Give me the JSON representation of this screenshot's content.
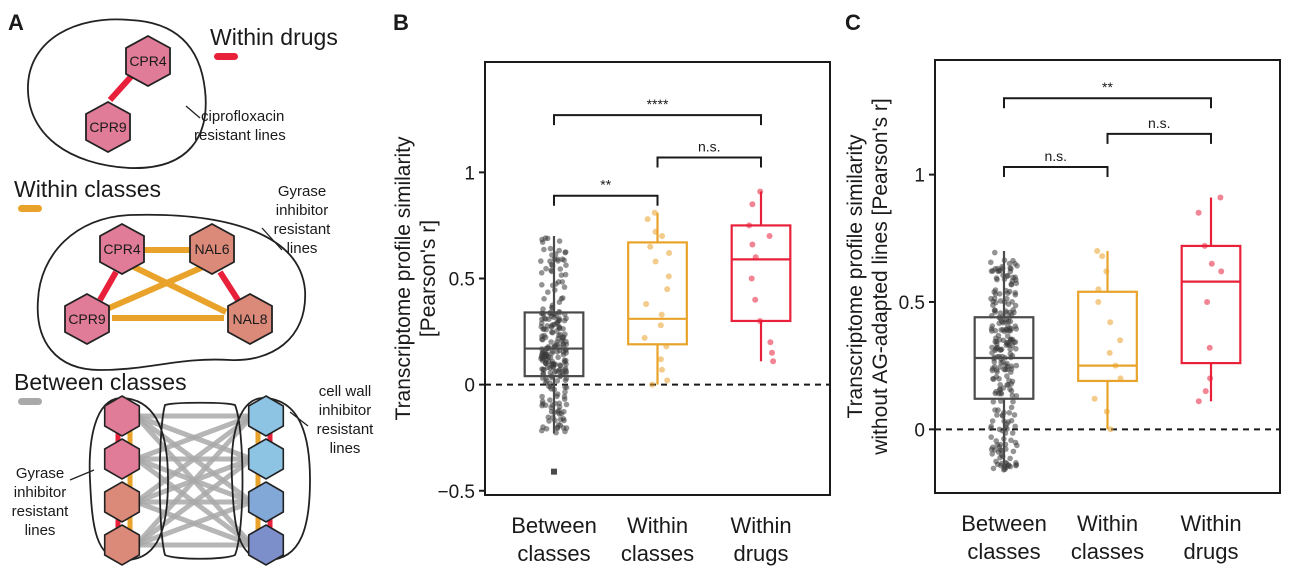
{
  "panels": {
    "a": "A",
    "b": "B",
    "c": "C"
  },
  "schematic": {
    "within_drugs": {
      "title": "Within drugs",
      "color": "#e8203a",
      "nodes": [
        "CPR4",
        "CPR9"
      ],
      "note": [
        "ciprofloxacin",
        "resistant lines"
      ]
    },
    "within_classes": {
      "title": "Within classes",
      "color": "#e9a32b",
      "nodes": [
        "CPR4",
        "NAL6",
        "CPR9",
        "NAL8"
      ],
      "note": [
        "Gyrase",
        "inhibitor",
        "resistant",
        "lines"
      ]
    },
    "between_classes": {
      "title": "Between classes",
      "color": "#a9a9a9",
      "left_note": [
        "Gyrase",
        "inhibitor",
        "resistant",
        "lines"
      ],
      "right_note": [
        "cell wall",
        "inhibitor",
        "resistant",
        "lines"
      ]
    },
    "colors": {
      "cpr": "#e07b98",
      "nal": "#db8a7a",
      "blue_light": "#8dc3e3",
      "blue_mid": "#82a8d8",
      "blue_dark": "#7d8fcb"
    }
  },
  "chart_data": [
    {
      "type": "box",
      "panel": "B",
      "categories": [
        [
          "Between",
          "classes"
        ],
        [
          "Within",
          "classes"
        ],
        [
          "Within",
          "drugs"
        ]
      ],
      "ylabel": [
        "Transcriptome profile similarity",
        "[Pearson's r]"
      ],
      "ylim": [
        -0.52,
        1.52
      ],
      "yticks": [
        -0.5,
        0,
        0.5,
        1
      ],
      "ytick_labels": [
        "−0.5",
        "0",
        "0.5",
        "1"
      ],
      "reference_line": 0,
      "colors": [
        "#4a4a4a",
        "#e9a32b",
        "#e8203a"
      ],
      "boxes": [
        {
          "whisker_low": -0.23,
          "q1": 0.04,
          "median": 0.17,
          "q3": 0.34,
          "whisker_high": 0.7,
          "outliers": [
            -0.41
          ]
        },
        {
          "whisker_low": 0.0,
          "q1": 0.19,
          "median": 0.31,
          "q3": 0.67,
          "whisker_high": 0.81,
          "outliers": []
        },
        {
          "whisker_low": 0.11,
          "q1": 0.3,
          "median": 0.59,
          "q3": 0.75,
          "whisker_high": 0.91,
          "outliers": []
        }
      ],
      "points_within_classes": [
        0.81,
        0.78,
        0.72,
        0.7,
        0.65,
        0.62,
        0.58,
        0.51,
        0.45,
        0.38,
        0.33,
        0.28,
        0.22,
        0.18,
        0.12,
        0.07,
        0.02,
        0.0
      ],
      "points_within_drugs": [
        0.91,
        0.85,
        0.75,
        0.7,
        0.66,
        0.6,
        0.5,
        0.4,
        0.3,
        0.2,
        0.15,
        0.11
      ],
      "significance": [
        {
          "from": 0,
          "to": 2,
          "label": "****",
          "y": 1.27
        },
        {
          "from": 1,
          "to": 2,
          "label": "n.s.",
          "y": 1.07
        },
        {
          "from": 0,
          "to": 1,
          "label": "**",
          "y": 0.89
        }
      ]
    },
    {
      "type": "box",
      "panel": "C",
      "categories": [
        [
          "Between",
          "classes"
        ],
        [
          "Within",
          "classes"
        ],
        [
          "Within",
          "drugs"
        ]
      ],
      "ylabel": [
        "Transcriptome profile similarity",
        "without AG-adapted lines [Pearson's r]"
      ],
      "ylim": [
        -0.25,
        1.45
      ],
      "yticks": [
        0,
        0.5,
        1
      ],
      "ytick_labels": [
        "0",
        "0.5",
        "1"
      ],
      "reference_line": 0,
      "colors": [
        "#4a4a4a",
        "#e9a32b",
        "#e8203a"
      ],
      "boxes": [
        {
          "whisker_low": -0.16,
          "q1": 0.12,
          "median": 0.28,
          "q3": 0.44,
          "whisker_high": 0.7,
          "outliers": []
        },
        {
          "whisker_low": 0.0,
          "q1": 0.19,
          "median": 0.25,
          "q3": 0.54,
          "whisker_high": 0.7,
          "outliers": []
        },
        {
          "whisker_low": 0.11,
          "q1": 0.26,
          "median": 0.58,
          "q3": 0.72,
          "whisker_high": 0.91,
          "outliers": []
        }
      ],
      "points_within_classes": [
        0.7,
        0.68,
        0.62,
        0.55,
        0.5,
        0.42,
        0.35,
        0.3,
        0.25,
        0.2,
        0.12,
        0.07,
        0.0
      ],
      "points_within_drugs": [
        0.91,
        0.85,
        0.72,
        0.65,
        0.62,
        0.5,
        0.32,
        0.2,
        0.15,
        0.11
      ],
      "significance": [
        {
          "from": 0,
          "to": 2,
          "label": "**",
          "y": 1.3
        },
        {
          "from": 1,
          "to": 2,
          "label": "n.s.",
          "y": 1.16
        },
        {
          "from": 0,
          "to": 1,
          "label": "n.s.",
          "y": 1.03
        }
      ]
    }
  ]
}
